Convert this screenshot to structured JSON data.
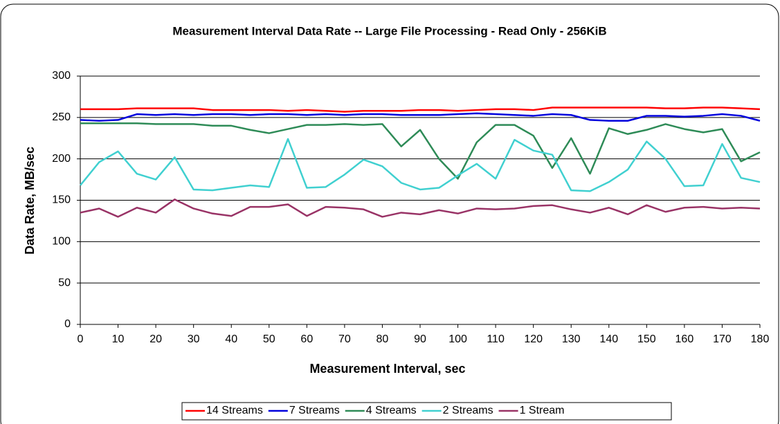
{
  "chart_data": {
    "type": "line",
    "title": "Measurement Interval Data Rate -- Large File Processing - Read Only - 256KiB",
    "xlabel": "Measurement Interval, sec",
    "ylabel": "Data Rate, MB/sec",
    "x": [
      0,
      5,
      10,
      15,
      20,
      25,
      30,
      35,
      40,
      45,
      50,
      55,
      60,
      65,
      70,
      75,
      80,
      85,
      90,
      95,
      100,
      105,
      110,
      115,
      120,
      125,
      130,
      135,
      140,
      145,
      150,
      155,
      160,
      165,
      170,
      175,
      180
    ],
    "xlim": [
      0,
      180
    ],
    "xticks": [
      0,
      10,
      20,
      30,
      40,
      50,
      60,
      70,
      80,
      90,
      100,
      110,
      120,
      130,
      140,
      150,
      160,
      170,
      180
    ],
    "ylim": [
      0,
      300
    ],
    "yticks": [
      0,
      50,
      100,
      150,
      200,
      250,
      300
    ],
    "grid": true,
    "legend": "bottom",
    "series": [
      {
        "name": "14 Streams",
        "color": "#ff0000",
        "values": [
          260,
          260,
          260,
          261,
          261,
          261,
          261,
          259,
          259,
          259,
          259,
          258,
          259,
          258,
          257,
          258,
          258,
          258,
          259,
          259,
          258,
          259,
          260,
          260,
          259,
          262,
          262,
          262,
          262,
          262,
          262,
          261,
          261,
          262,
          262,
          261,
          260
        ]
      },
      {
        "name": "7 Streams",
        "color": "#0000dd",
        "values": [
          247,
          246,
          247,
          254,
          253,
          254,
          253,
          254,
          254,
          253,
          254,
          254,
          253,
          254,
          253,
          254,
          254,
          253,
          253,
          253,
          254,
          255,
          254,
          253,
          252,
          254,
          253,
          247,
          246,
          246,
          252,
          252,
          251,
          252,
          254,
          252,
          246
        ]
      },
      {
        "name": "4 Streams",
        "color": "#2e8b57",
        "values": [
          243,
          243,
          243,
          243,
          242,
          242,
          242,
          240,
          240,
          235,
          231,
          236,
          241,
          241,
          242,
          241,
          242,
          215,
          235,
          200,
          176,
          220,
          241,
          241,
          228,
          189,
          225,
          182,
          237,
          230,
          235,
          242,
          236,
          232,
          236,
          197,
          208
        ]
      },
      {
        "name": "2 Streams",
        "color": "#40d0d0",
        "values": [
          168,
          196,
          209,
          182,
          175,
          202,
          163,
          162,
          165,
          168,
          166,
          224,
          165,
          166,
          181,
          199,
          191,
          171,
          163,
          165,
          180,
          194,
          176,
          223,
          210,
          205,
          162,
          161,
          172,
          187,
          221,
          200,
          167,
          168,
          218,
          177,
          172
        ]
      },
      {
        "name": "1 Stream",
        "color": "#993366",
        "values": [
          135,
          140,
          130,
          141,
          135,
          151,
          140,
          134,
          131,
          142,
          142,
          145,
          131,
          142,
          141,
          139,
          130,
          135,
          133,
          138,
          134,
          140,
          139,
          140,
          143,
          144,
          139,
          135,
          141,
          133,
          144,
          136,
          141,
          142,
          140,
          141,
          140
        ]
      }
    ]
  }
}
